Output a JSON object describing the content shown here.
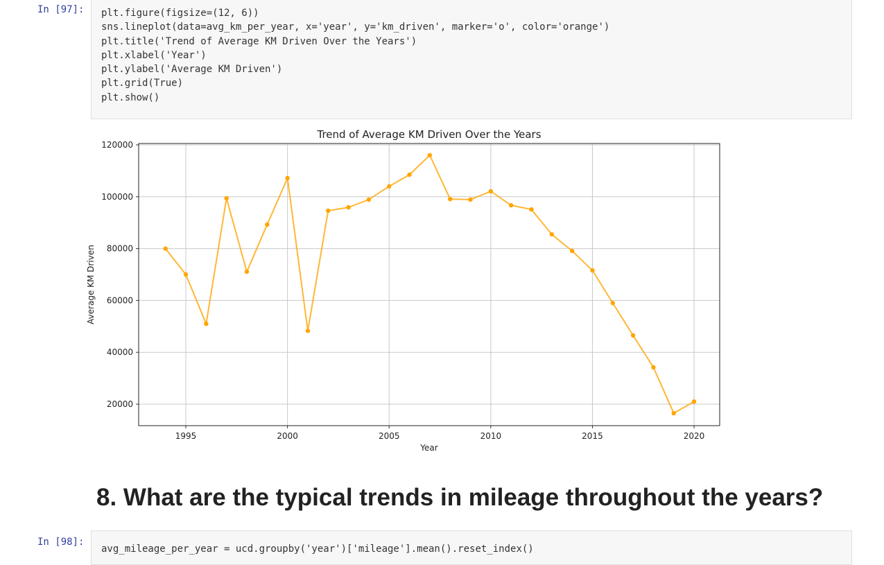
{
  "cells": [
    {
      "prompt": "In [97]:",
      "code": [
        "plt.figure(figsize=(12, 6))",
        "sns.lineplot(data=avg_km_per_year, x='year', y='km_driven', marker='o', color='orange')",
        "plt.title('Trend of Average KM Driven Over the Years')",
        "plt.xlabel('Year')",
        "plt.ylabel('Average KM Driven')",
        "plt.grid(True)",
        "plt.show()"
      ]
    },
    {
      "prompt": "In [98]:",
      "code": [
        "avg_mileage_per_year = ucd.groupby('year')['mileage'].mean().reset_index()"
      ]
    }
  ],
  "chart_data": {
    "type": "line",
    "title": "Trend of Average KM Driven Over the Years",
    "x_label": "Year",
    "y_label": "Average KM Driven",
    "x": [
      1994,
      1995,
      1996,
      1997,
      1998,
      1999,
      2000,
      2001,
      2002,
      2003,
      2004,
      2005,
      2006,
      2007,
      2008,
      2009,
      2010,
      2011,
      2012,
      2013,
      2014,
      2015,
      2016,
      2017,
      2018,
      2019,
      2020
    ],
    "series": [
      {
        "name": "km_driven",
        "color": "#ffa500",
        "values": [
          80000,
          70000,
          51000,
          99400,
          71100,
          89250,
          107200,
          48300,
          94600,
          95900,
          98900,
          104000,
          108500,
          116000,
          99100,
          98900,
          102100,
          96700,
          95100,
          85500,
          79100,
          71600,
          59000,
          46500,
          34200,
          16500,
          21000
        ]
      }
    ],
    "xlim": [
      1992.68,
      2021.26
    ],
    "xticks": [
      1995,
      2000,
      2005,
      2010,
      2015,
      2020
    ],
    "ylim": [
      11710,
      120535
    ],
    "yticks": [
      20000,
      40000,
      60000,
      80000,
      100000,
      120000
    ],
    "grid": true
  },
  "heading": "8. What are the typical trends in mileage throughout the years?"
}
